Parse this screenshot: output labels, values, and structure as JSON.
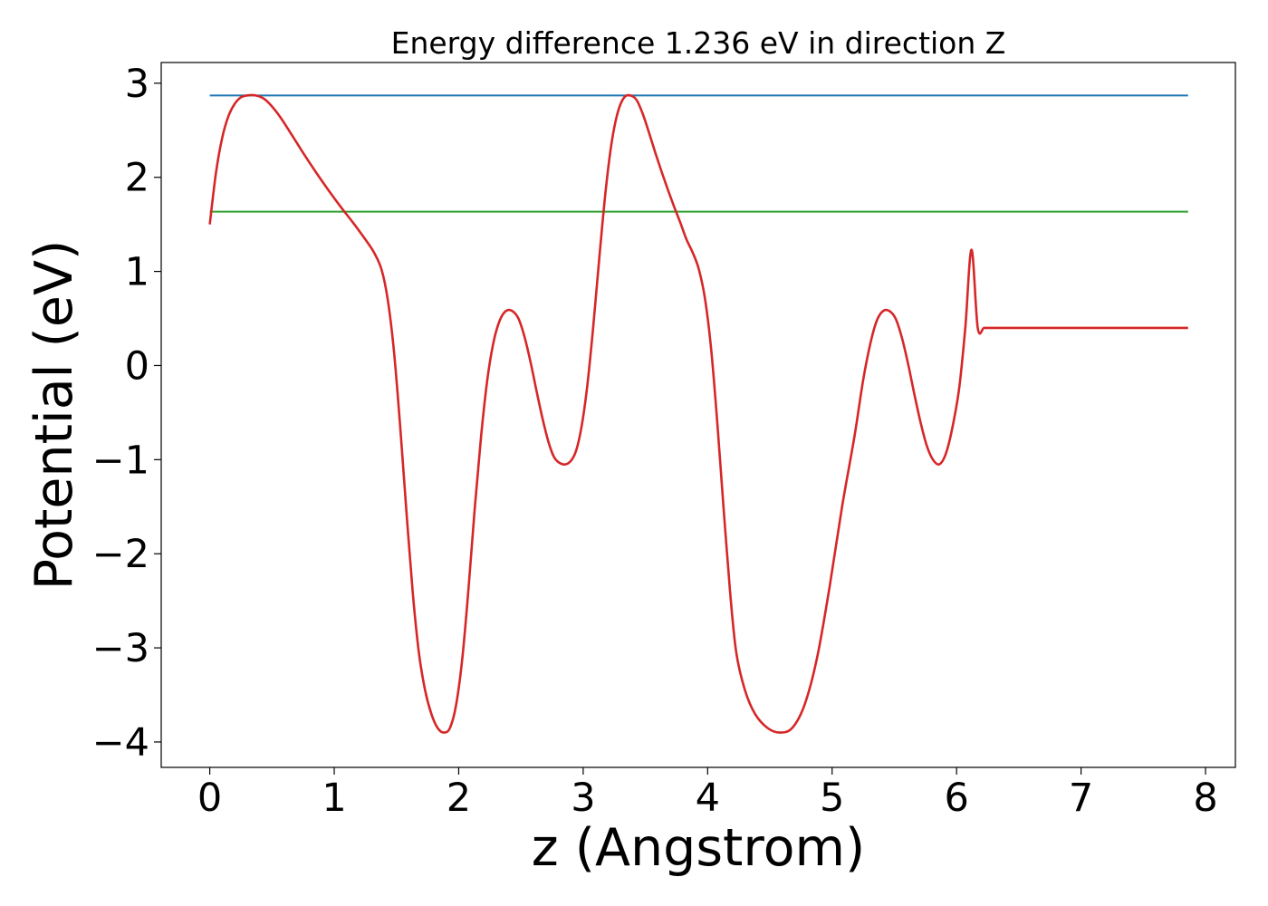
{
  "chart_data": {
    "type": "line",
    "title": "Energy difference 1.236 eV in direction Z",
    "xlabel": "z (Angstrom)",
    "ylabel": "Potential (eV)",
    "xlim": [
      -0.39,
      8.24
    ],
    "ylim": [
      -4.27,
      3.22
    ],
    "xticks": [
      0,
      1,
      2,
      3,
      4,
      5,
      6,
      7,
      8
    ],
    "yticks": [
      -4,
      -3,
      -2,
      -1,
      0,
      1,
      2,
      3
    ],
    "xtick_labels": [
      "0",
      "1",
      "2",
      "3",
      "4",
      "5",
      "6",
      "7",
      "8"
    ],
    "ytick_labels": [
      "−4",
      "−3",
      "−2",
      "−1",
      "0",
      "1",
      "2",
      "3"
    ],
    "grid": false,
    "series": [
      {
        "color": "#d62728",
        "x": [
          0.0,
          0.05,
          0.1,
          0.15,
          0.2,
          0.25,
          0.3,
          0.37,
          0.45,
          0.55,
          0.65,
          0.75,
          0.85,
          0.95,
          1.05,
          1.15,
          1.25,
          1.32,
          1.38,
          1.43,
          1.48,
          1.53,
          1.58,
          1.63,
          1.68,
          1.73,
          1.78,
          1.83,
          1.88,
          1.93,
          1.98,
          2.03,
          2.08,
          2.13,
          2.18,
          2.23,
          2.28,
          2.33,
          2.38,
          2.43,
          2.48,
          2.53,
          2.58,
          2.63,
          2.68,
          2.73,
          2.78,
          2.86,
          2.93,
          2.98,
          3.03,
          3.08,
          3.13,
          3.18,
          3.23,
          3.28,
          3.33,
          3.38,
          3.43,
          3.48,
          3.53,
          3.58,
          3.63,
          3.68,
          3.73,
          3.78,
          3.83,
          3.88,
          3.93,
          3.98,
          4.03,
          4.08,
          4.13,
          4.18,
          4.23,
          4.3,
          4.38,
          4.48,
          4.58,
          4.68,
          4.78,
          4.88,
          4.98,
          5.08,
          5.18,
          5.25,
          5.31,
          5.36,
          5.41,
          5.46,
          5.51,
          5.56,
          5.61,
          5.66,
          5.71,
          5.76,
          5.81,
          5.86,
          5.91,
          5.96,
          6.02,
          6.07,
          6.12,
          6.17,
          6.22,
          6.27,
          6.32,
          6.37,
          6.42,
          6.47,
          6.52,
          6.57,
          6.62,
          6.67,
          6.72,
          6.8,
          6.87,
          6.92,
          6.97,
          7.02,
          7.07,
          7.12,
          7.17,
          7.22,
          7.27,
          7.33,
          7.38,
          7.43,
          7.48,
          7.53,
          7.58,
          7.63,
          7.68,
          7.73,
          7.78,
          7.83,
          7.86
        ],
        "values": [
          1.5,
          2.05,
          2.42,
          2.65,
          2.78,
          2.85,
          2.87,
          2.87,
          2.82,
          2.67,
          2.47,
          2.26,
          2.06,
          1.87,
          1.69,
          1.52,
          1.34,
          1.2,
          1.02,
          0.7,
          0.15,
          -0.65,
          -1.55,
          -2.4,
          -3.05,
          -3.45,
          -3.7,
          -3.85,
          -3.9,
          -3.85,
          -3.6,
          -3.1,
          -2.35,
          -1.5,
          -0.75,
          -0.15,
          0.25,
          0.48,
          0.58,
          0.58,
          0.5,
          0.3,
          0.02,
          -0.3,
          -0.6,
          -0.85,
          -1.0,
          -1.05,
          -0.95,
          -0.7,
          -0.25,
          0.4,
          1.15,
          1.85,
          2.38,
          2.7,
          2.85,
          2.87,
          2.82,
          2.67,
          2.47,
          2.26,
          2.06,
          1.87,
          1.69,
          1.52,
          1.34,
          1.2,
          1.02,
          0.7,
          0.15,
          -0.65,
          -1.55,
          -2.4,
          -3.05,
          -3.45,
          -3.7,
          -3.85,
          -3.9,
          -3.85,
          -3.6,
          -3.1,
          -2.35,
          -1.5,
          -0.75,
          -0.15,
          0.25,
          0.48,
          0.58,
          0.58,
          0.5,
          0.3,
          0.02,
          -0.3,
          -0.6,
          -0.85,
          -1.0,
          -1.05,
          -0.95,
          -0.7,
          -0.25,
          0.4,
          1.23,
          0.4,
          0.4,
          0.4,
          0.4,
          0.4,
          0.4,
          0.4,
          0.4,
          0.4,
          0.4,
          0.4,
          0.4,
          0.4,
          0.4,
          0.4,
          0.4,
          0.4,
          0.4,
          0.4,
          0.4,
          0.4,
          0.4,
          0.4,
          0.4,
          0.4,
          0.4,
          0.4,
          0.4,
          0.4,
          0.4,
          0.4,
          0.4,
          0.4,
          0.4
        ]
      }
    ],
    "reference_lines": [
      {
        "color": "#1f77b4",
        "x": [
          0.0,
          7.86
        ],
        "y": 2.87
      },
      {
        "color": "#2ca02c",
        "x": [
          0.0,
          7.86
        ],
        "y": 1.635
      }
    ]
  }
}
